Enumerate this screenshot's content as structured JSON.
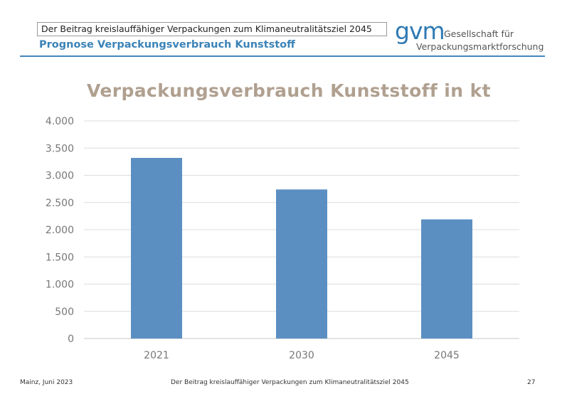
{
  "header": {
    "title": "Der Beitrag kreislauffähiger Verpackungen zum Klimaneutralitätsziel 2045",
    "subtitle": "Prognose Verpackungsverbrauch Kunststoff"
  },
  "logo": {
    "mark": "gvm",
    "line1": "Gesellschaft für",
    "line2": "Verpackungsmarktforschung"
  },
  "chart_data": {
    "type": "bar",
    "title": "Verpackungsverbrauch Kunststoff in kt",
    "categories": [
      "2021",
      "2030",
      "2045"
    ],
    "values": [
      3320,
      2740,
      2190
    ],
    "ylim": [
      0,
      4000
    ],
    "yticks": [
      0,
      500,
      1000,
      1500,
      2000,
      2500,
      3000,
      3500,
      4000
    ],
    "ytick_labels": [
      "0",
      "500",
      "1.000",
      "1.500",
      "2.000",
      "2.500",
      "3.000",
      "3.500",
      "4.000"
    ],
    "grid": true,
    "bar_color": "#5b8fc2",
    "title_color": "#b0a090"
  },
  "footer": {
    "left": "Mainz, Juni 2023",
    "center": "Der Beitrag kreislauffähiger Verpackungen zum Klimaneutralitätsziel 2045",
    "right": "27"
  },
  "colors": {
    "accent": "#3f87bb",
    "text": "#222222"
  }
}
